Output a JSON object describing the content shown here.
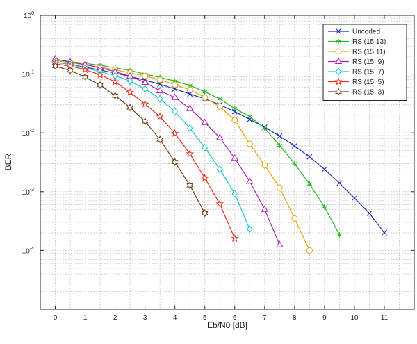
{
  "chart_data": {
    "type": "line",
    "xlabel": "Eb/N0 [dB]",
    "ylabel": "BER",
    "yscale": "log",
    "xlim": [
      -0.5,
      12
    ],
    "ylim": [
      1e-05,
      1
    ],
    "grid": true,
    "legend_position": "top-right",
    "xticks": [
      0,
      1,
      2,
      3,
      4,
      5,
      6,
      7,
      8,
      9,
      10,
      11
    ],
    "yticks": [
      {
        "value": 1,
        "base": "10",
        "exp": "0"
      },
      {
        "value": 0.1,
        "base": "10",
        "exp": "-1"
      },
      {
        "value": 0.01,
        "base": "10",
        "exp": "-2"
      },
      {
        "value": 0.001,
        "base": "10",
        "exp": "-3"
      },
      {
        "value": 0.0001,
        "base": "10",
        "exp": "-4"
      }
    ],
    "series": [
      {
        "name": "Uncoded",
        "color": "#1f2dbf",
        "marker": "x",
        "x": [
          0,
          0.5,
          1,
          1.5,
          2,
          2.5,
          3,
          3.5,
          4,
          4.5,
          5,
          5.5,
          6,
          6.5,
          7,
          7.5,
          8,
          8.5,
          9,
          9.5,
          10,
          10.5,
          11
        ],
        "y": [
          0.159,
          0.146,
          0.131,
          0.117,
          0.104,
          0.091,
          0.079,
          0.067,
          0.056,
          0.046,
          0.038,
          0.03,
          0.023,
          0.017,
          0.0125,
          0.0088,
          0.006,
          0.0039,
          0.0024,
          0.0014,
          0.00078,
          0.00043,
          0.0002
        ]
      },
      {
        "name": "RS (15,13)",
        "color": "#22b81e",
        "marker": "star6",
        "x": [
          0,
          0.5,
          1,
          1.5,
          2,
          2.5,
          3,
          3.5,
          4,
          4.5,
          5,
          5.5,
          6,
          6.5,
          7,
          7.5,
          8,
          8.5,
          9,
          9.5
        ],
        "y": [
          0.176,
          0.164,
          0.152,
          0.141,
          0.128,
          0.115,
          0.1,
          0.088,
          0.076,
          0.064,
          0.05,
          0.038,
          0.026,
          0.019,
          0.012,
          0.0061,
          0.003,
          0.00135,
          0.00055,
          0.000185
        ]
      },
      {
        "name": "RS (15,11)",
        "color": "#e8a30c",
        "marker": "circle",
        "x": [
          0,
          0.5,
          1,
          1.5,
          2,
          2.5,
          3,
          3.5,
          4,
          4.5,
          5,
          5.5,
          6,
          6.5,
          7,
          7.5,
          8,
          8.5
        ],
        "y": [
          0.17,
          0.157,
          0.144,
          0.131,
          0.118,
          0.105,
          0.093,
          0.08,
          0.066,
          0.054,
          0.04,
          0.028,
          0.0165,
          0.0065,
          0.0028,
          0.00117,
          0.00035,
          0.0001
        ]
      },
      {
        "name": "RS (15, 9)",
        "color": "#b31cb3",
        "marker": "triangle",
        "x": [
          0,
          0.5,
          1,
          1.5,
          2,
          2.5,
          3,
          3.5,
          4,
          4.5,
          5,
          5.5,
          6,
          6.5,
          7,
          7.5
        ],
        "y": [
          0.18,
          0.16,
          0.145,
          0.128,
          0.11,
          0.092,
          0.072,
          0.052,
          0.04,
          0.026,
          0.015,
          0.0083,
          0.0037,
          0.0015,
          0.0005,
          0.000125
        ]
      },
      {
        "name": "RS (15, 7)",
        "color": "#18c6c6",
        "marker": "diamond",
        "x": [
          0,
          0.5,
          1,
          1.5,
          2,
          2.5,
          3,
          3.5,
          4,
          4.5,
          5,
          5.5,
          6,
          6.5
        ],
        "y": [
          0.16,
          0.146,
          0.127,
          0.11,
          0.094,
          0.076,
          0.056,
          0.038,
          0.023,
          0.012,
          0.0056,
          0.0024,
          0.00093,
          0.00023
        ]
      },
      {
        "name": "RS (15, 5)",
        "color": "#e8301c",
        "marker": "star5",
        "x": [
          0,
          0.5,
          1,
          1.5,
          2,
          2.5,
          3,
          3.5,
          4,
          4.5,
          5,
          5.5,
          6
        ],
        "y": [
          0.15,
          0.136,
          0.119,
          0.097,
          0.074,
          0.049,
          0.031,
          0.019,
          0.0098,
          0.0044,
          0.0017,
          0.00062,
          0.00016
        ]
      },
      {
        "name": "RS (15, 3)",
        "color": "#6b3c12",
        "marker": "hexagram",
        "x": [
          0,
          0.5,
          1,
          1.5,
          2,
          2.5,
          3,
          3.5,
          4,
          4.5,
          5
        ],
        "y": [
          0.137,
          0.115,
          0.089,
          0.065,
          0.043,
          0.027,
          0.0157,
          0.0077,
          0.0032,
          0.00128,
          0.00043
        ]
      }
    ]
  }
}
